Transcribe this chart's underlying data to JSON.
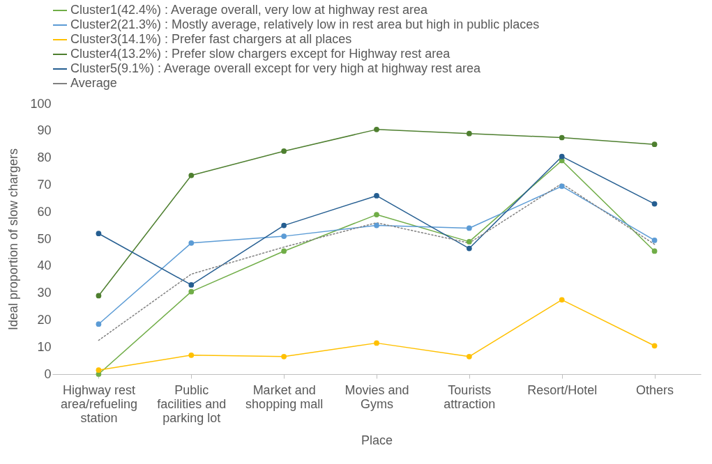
{
  "chart_data": {
    "type": "line",
    "xlabel": "Place",
    "ylabel": "Ideal proportion of slow chargers",
    "categories": [
      "Highway rest area/refueling station",
      "Public facilities and parking lot",
      "Market and shopping mall",
      "Movies and Gyms",
      "Tourists attraction",
      "Resort/Hotel",
      "Others"
    ],
    "series": [
      {
        "name": "Cluster1(42.4%) : Average overall, very low at highway rest area",
        "color": "#70ad47",
        "marker": "circle",
        "line_style": "solid",
        "values": [
          0,
          30.5,
          45.5,
          59,
          49,
          79,
          45.5
        ]
      },
      {
        "name": "Cluster2(21.3%) : Mostly average, relatively low in rest area but high in public places",
        "color": "#5b9bd5",
        "marker": "circle",
        "line_style": "solid",
        "values": [
          18.5,
          48.5,
          51,
          55,
          54,
          69.5,
          49.5
        ]
      },
      {
        "name": "Cluster3(14.1%) : Prefer fast chargers at all places",
        "color": "#ffc000",
        "marker": "circle",
        "line_style": "solid",
        "values": [
          1.5,
          7,
          6.5,
          11.5,
          6.5,
          27.5,
          10.5
        ]
      },
      {
        "name": "Cluster4(13.2%) : Prefer slow chargers except for Highway rest area",
        "color": "#4e7f2f",
        "marker": "circle",
        "line_style": "solid",
        "values": [
          29,
          73.5,
          82.5,
          90.5,
          89,
          87.5,
          85
        ]
      },
      {
        "name": "Cluster5(9.1%) : Average overall except for very high at highway rest area",
        "color": "#255e91",
        "marker": "circle",
        "line_style": "solid",
        "values": [
          52,
          33,
          55,
          66,
          46.5,
          80.5,
          63
        ]
      },
      {
        "name": "Average",
        "color": "#808080",
        "marker": "none",
        "line_style": "dotted",
        "values": [
          12.5,
          37,
          47,
          56,
          48.5,
          70.5,
          48
        ]
      }
    ],
    "ylim": [
      0,
      100
    ],
    "yticks": [
      0,
      10,
      20,
      30,
      40,
      50,
      60,
      70,
      80,
      90,
      100
    ],
    "legend": "top"
  }
}
